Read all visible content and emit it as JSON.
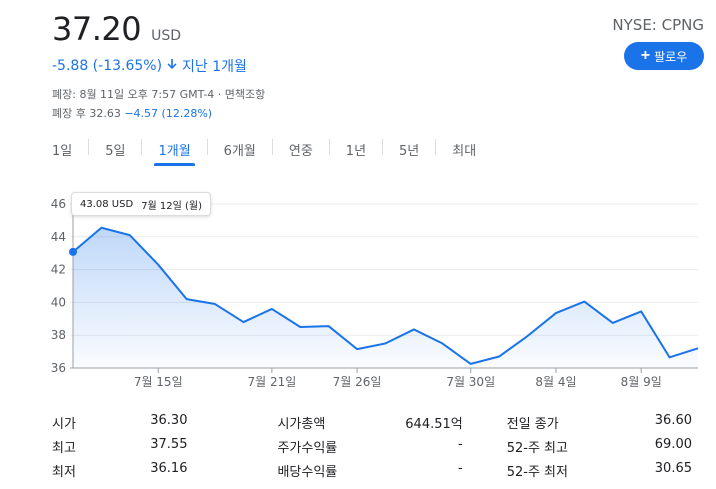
{
  "quote": {
    "price": "37.20",
    "currency": "USD",
    "exchange_ticker": "NYSE: CPNG",
    "follow_label": "팔로우",
    "change": "-5.88 (-13.65%)",
    "change_period": "지난 1개월",
    "market_closed": "폐장: 8월 11일 오후 7:57 GMT-4 · 면책조항",
    "after_hours_label": "폐장 후 32.63",
    "after_hours_change": "−4.57 (12.28%)"
  },
  "tabs": [
    {
      "label": "1일"
    },
    {
      "label": "5일"
    },
    {
      "label": "1개월"
    },
    {
      "label": "6개월"
    },
    {
      "label": "연중"
    },
    {
      "label": "1년"
    },
    {
      "label": "5년"
    },
    {
      "label": "최대"
    }
  ],
  "active_tab": "1개월",
  "tooltip": {
    "value": "43.08 USD",
    "date": "7월 12일 (월)"
  },
  "chart_data": {
    "type": "area",
    "title": "",
    "xlabel": "",
    "ylabel": "",
    "ylim": [
      36,
      46
    ],
    "yticks": [
      "46",
      "44",
      "42",
      "40",
      "38",
      "36"
    ],
    "xtick_labels": [
      "7월 15일",
      "7월 21일",
      "7월 26일",
      "7월 30일",
      "8월 4일",
      "8월 9일"
    ],
    "x": [
      "7월 12일",
      "7월 13일",
      "7월 14일",
      "7월 15일",
      "7월 16일",
      "7월 19일",
      "7월 20일",
      "7월 21일",
      "7월 22일",
      "7월 23일",
      "7월 26일",
      "7월 27일",
      "7월 28일",
      "7월 29일",
      "7월 30일",
      "8월 2일",
      "8월 3일",
      "8월 4일",
      "8월 5일",
      "8월 6일",
      "8월 9일",
      "8월 10일",
      "8월 11일"
    ],
    "values": [
      43.08,
      44.55,
      44.1,
      42.3,
      40.2,
      39.9,
      38.8,
      39.6,
      38.5,
      38.55,
      37.15,
      37.5,
      38.35,
      37.5,
      36.25,
      36.7,
      37.95,
      39.35,
      40.05,
      38.75,
      39.45,
      36.65,
      37.2
    ],
    "line_color": "#1a73e8",
    "grid": true
  },
  "stats": [
    [
      {
        "label": "시가",
        "value": "36.30"
      },
      {
        "label": "시가총액",
        "value": "644.51억"
      },
      {
        "label": "전일 종가",
        "value": "36.60"
      }
    ],
    [
      {
        "label": "최고",
        "value": "37.55"
      },
      {
        "label": "주가수익률",
        "value": "-"
      },
      {
        "label": "52-주 최고",
        "value": "69.00"
      }
    ],
    [
      {
        "label": "최저",
        "value": "36.16"
      },
      {
        "label": "배당수익률",
        "value": "-"
      },
      {
        "label": "52-주 최저",
        "value": "30.65"
      }
    ]
  ]
}
